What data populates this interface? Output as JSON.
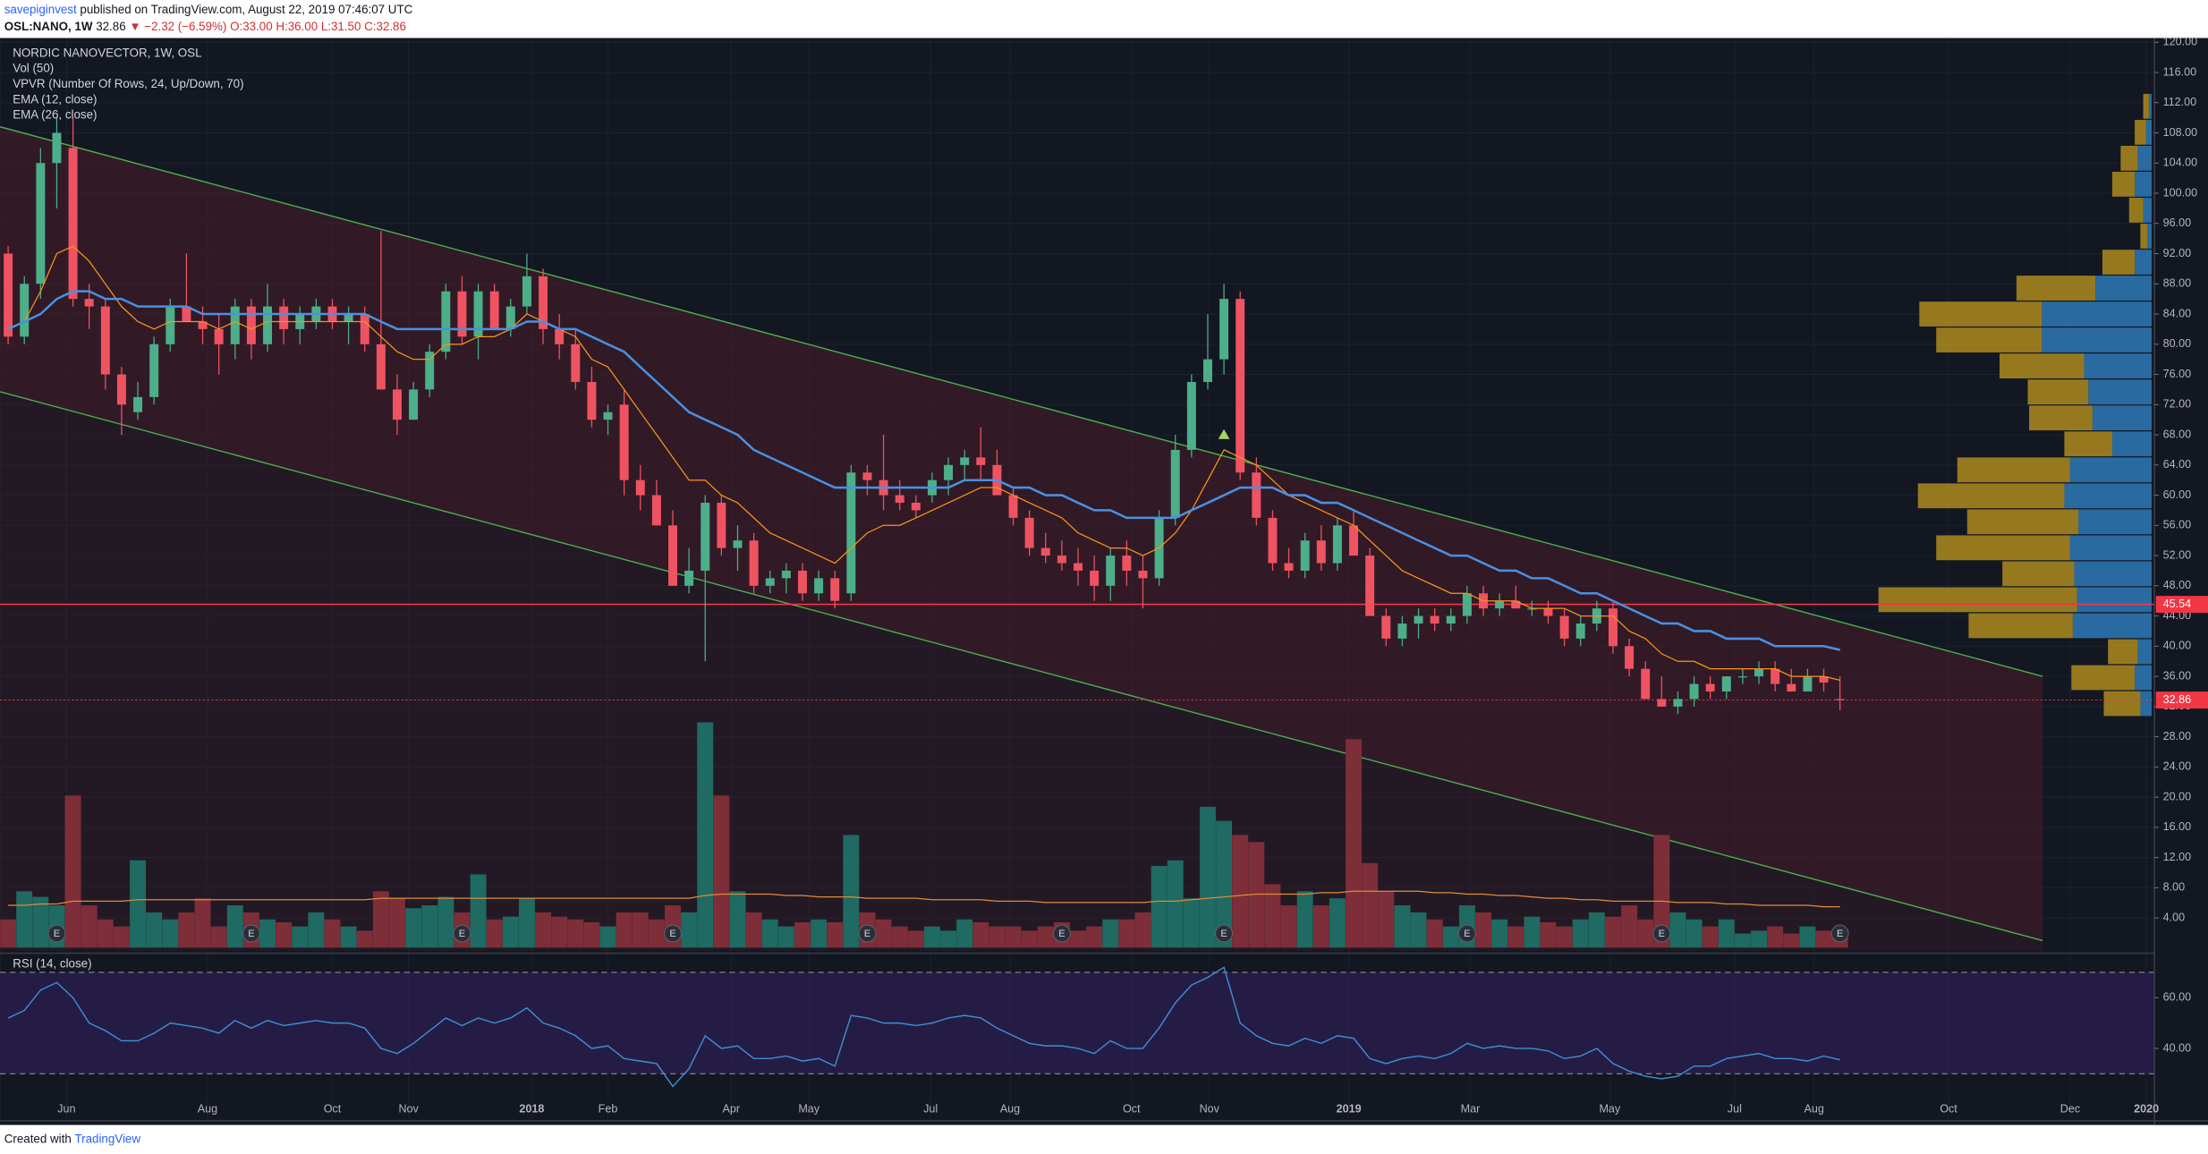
{
  "header": {
    "author": "savepiginvest",
    "published": "published on TradingView.com, August 22, 2019 07:46:07 UTC",
    "symbol": "OSL:NANO, 1W",
    "last": "32.86",
    "change": "▼ −2.32 (−6.59%)",
    "ohlc": "O:33.00 H:36.00 L:31.50 C:32.86"
  },
  "footer": {
    "created": "Created with",
    "brand": "TradingView"
  },
  "chart_data": {
    "type": "candlestick",
    "title": "NORDIC NANOVECTOR, 1W, OSL",
    "indicators": [
      "Vol (50)",
      "VPVR (Number Of Rows, 24, Up/Down, 70)",
      "EMA (12, close)",
      "EMA (26, close)"
    ],
    "up_color": "#4caf8a",
    "down_color": "#ef5361",
    "open": [
      92,
      81,
      88,
      104,
      106,
      86,
      85,
      76,
      71,
      73,
      80,
      85,
      83,
      82,
      80,
      85,
      80,
      85,
      82,
      83,
      85,
      83,
      84,
      80,
      74,
      70,
      74,
      79,
      87,
      81,
      87,
      82,
      85,
      89,
      82,
      80,
      75,
      70,
      72,
      62,
      60,
      56,
      48,
      50,
      59,
      53,
      54,
      48,
      49,
      50,
      47,
      49,
      47,
      63,
      62,
      60,
      59,
      60,
      62,
      64,
      65,
      64,
      60,
      57,
      53,
      52,
      51,
      50,
      48,
      52,
      50,
      49,
      57,
      66,
      75,
      78,
      86,
      63,
      57,
      51,
      50,
      54,
      51,
      56,
      52,
      44,
      41,
      43,
      44,
      43,
      44,
      47,
      45,
      46,
      45,
      45,
      44,
      41,
      43,
      45,
      40,
      37,
      33,
      32,
      33,
      35,
      34,
      36,
      36,
      37,
      35,
      34,
      36,
      33
    ],
    "high": [
      93,
      89,
      106,
      110,
      110,
      88,
      86,
      77,
      75,
      81,
      86,
      92,
      85,
      84,
      86,
      86,
      88,
      86,
      85,
      86,
      86,
      85,
      85,
      95,
      76,
      75,
      80,
      88,
      89,
      88,
      88,
      86,
      92,
      90,
      84,
      82,
      77,
      72,
      74,
      64,
      62,
      58,
      53,
      60,
      60,
      56,
      55,
      50,
      51,
      51,
      50,
      50,
      64,
      64,
      68,
      62,
      60,
      63,
      65,
      66,
      69,
      66,
      61,
      58,
      55,
      54,
      53,
      52,
      53,
      54,
      52,
      58,
      68,
      76,
      84,
      88,
      87,
      65,
      58,
      53,
      55,
      56,
      57,
      58,
      53,
      45,
      44,
      45,
      45,
      45,
      48,
      48,
      47,
      48,
      46,
      46,
      45,
      44,
      46,
      46,
      41,
      38,
      36,
      34,
      36,
      36,
      36,
      37,
      38,
      38,
      37,
      37,
      37,
      36
    ],
    "low": [
      80,
      80,
      86,
      98,
      85,
      82,
      74,
      68,
      70,
      72,
      79,
      83,
      80,
      76,
      78,
      78,
      79,
      80,
      80,
      82,
      82,
      80,
      79,
      74,
      68,
      70,
      73,
      78,
      80,
      78,
      82,
      81,
      84,
      80,
      78,
      74,
      69,
      68,
      60,
      58,
      56,
      48,
      47,
      38,
      52,
      50,
      47,
      47,
      47,
      46,
      46,
      45,
      46,
      60,
      58,
      58,
      57,
      59,
      60,
      62,
      62,
      60,
      56,
      52,
      51,
      50,
      48,
      46,
      46,
      48,
      45,
      48,
      56,
      65,
      74,
      76,
      62,
      56,
      50,
      49,
      49,
      50,
      50,
      52,
      44,
      40,
      40,
      41,
      42,
      42,
      43,
      44,
      44,
      45,
      44,
      43,
      40,
      40,
      42,
      39,
      36,
      33,
      32,
      31,
      32,
      33,
      33,
      35,
      35,
      34,
      34,
      34,
      34,
      31.5
    ],
    "close": [
      81,
      88,
      104,
      108,
      86,
      85,
      76,
      72,
      73,
      80,
      85,
      83,
      82,
      80,
      85,
      80,
      85,
      82,
      84,
      85,
      83,
      84,
      80,
      74,
      70,
      74,
      79,
      87,
      81,
      87,
      82,
      85,
      89,
      82,
      80,
      75,
      70,
      71,
      62,
      60,
      56,
      48,
      50,
      59,
      53,
      54,
      48,
      49,
      50,
      47,
      49,
      46,
      63,
      62,
      60,
      59,
      58,
      62,
      64,
      65,
      64,
      60,
      57,
      53,
      52,
      51,
      50,
      48,
      52,
      50,
      49,
      57,
      66,
      75,
      78,
      86,
      63,
      57,
      51,
      50,
      54,
      51,
      56,
      52,
      44,
      41,
      43,
      44,
      43,
      44,
      47,
      45,
      46,
      45,
      45,
      44,
      41,
      43,
      45,
      40,
      37,
      33,
      32,
      33,
      35,
      34,
      36,
      36,
      37,
      35,
      34,
      36,
      35.18,
      32.86
    ],
    "volume": [
      20,
      40,
      36,
      30,
      108,
      30,
      20,
      15,
      62,
      25,
      20,
      25,
      35,
      15,
      30,
      25,
      20,
      18,
      15,
      25,
      20,
      15,
      12,
      40,
      35,
      28,
      30,
      36,
      25,
      52,
      20,
      22,
      35,
      25,
      22,
      20,
      18,
      15,
      25,
      25,
      20,
      30,
      25,
      160,
      108,
      40,
      25,
      20,
      15,
      18,
      20,
      18,
      80,
      25,
      20,
      15,
      12,
      15,
      12,
      20,
      18,
      15,
      15,
      12,
      15,
      18,
      12,
      15,
      20,
      20,
      25,
      58,
      62,
      35,
      100,
      90,
      80,
      75,
      45,
      30,
      40,
      30,
      35,
      148,
      60,
      40,
      30,
      25,
      20,
      15,
      30,
      25,
      20,
      15,
      22,
      18,
      15,
      20,
      25,
      22,
      30,
      20,
      80,
      25,
      20,
      15,
      20,
      10,
      12,
      15,
      10,
      15,
      12,
      10
    ],
    "volume_ma": {
      "color": "#e08a3c",
      "values": [
        30,
        30,
        31,
        31,
        33,
        33,
        33,
        33,
        34,
        34,
        34,
        34,
        34,
        34,
        34,
        34,
        34,
        34,
        34,
        34,
        34,
        34,
        34,
        35,
        35,
        35,
        35,
        35,
        35,
        35,
        35,
        35,
        35,
        35,
        35,
        35,
        35,
        35,
        35,
        35,
        35,
        35,
        35,
        37,
        38,
        38,
        38,
        38,
        37,
        37,
        36,
        36,
        36,
        35,
        35,
        35,
        35,
        34,
        34,
        34,
        34,
        33,
        33,
        33,
        32,
        32,
        32,
        32,
        32,
        32,
        32,
        33,
        33,
        34,
        35,
        36,
        37,
        38,
        38,
        38,
        38,
        39,
        39,
        40,
        40,
        40,
        40,
        40,
        39,
        39,
        38,
        38,
        37,
        37,
        36,
        35,
        35,
        34,
        34,
        33,
        33,
        33,
        33,
        32,
        32,
        32,
        31,
        31,
        30,
        30,
        30,
        30,
        29,
        29
      ]
    },
    "vol_ylim": [
      0,
      160
    ],
    "series": [
      {
        "name": "EMA (12, close)",
        "color": "#f7931a",
        "values": [
          82,
          83,
          87,
          92,
          93,
          91,
          88,
          85,
          83,
          82,
          83,
          83,
          83,
          82,
          83,
          82,
          83,
          83,
          83,
          83,
          83,
          83,
          83,
          81,
          79,
          78,
          78,
          80,
          80,
          81,
          81,
          82,
          84,
          83,
          82,
          81,
          78,
          77,
          74,
          71,
          68,
          65,
          62,
          62,
          60,
          59,
          57,
          55,
          54,
          53,
          52,
          51,
          53,
          55,
          56,
          56,
          57,
          58,
          59,
          60,
          61,
          61,
          60,
          59,
          58,
          57,
          55,
          54,
          53,
          53,
          52,
          53,
          55,
          58,
          62,
          66,
          65,
          64,
          62,
          60,
          59,
          58,
          57,
          56,
          54,
          52,
          50,
          49,
          48,
          47,
          47,
          46,
          46,
          46,
          45,
          45,
          45,
          44,
          44,
          44,
          42,
          41,
          39,
          38,
          38,
          37,
          37,
          37,
          37,
          37,
          36,
          36,
          36,
          35.5
        ]
      },
      {
        "name": "EMA (26, close)",
        "color": "#4a90e2",
        "values": [
          82,
          83,
          84,
          86,
          87,
          87,
          86,
          86,
          85,
          85,
          85,
          85,
          84,
          84,
          84,
          84,
          84,
          84,
          84,
          84,
          84,
          84,
          84,
          83,
          82,
          82,
          82,
          82,
          82,
          82,
          82,
          82,
          83,
          83,
          82,
          82,
          81,
          80,
          79,
          77,
          75,
          73,
          71,
          70,
          69,
          68,
          66,
          65,
          64,
          63,
          62,
          61,
          61,
          61,
          61,
          61,
          61,
          61,
          61,
          62,
          62,
          62,
          61,
          61,
          60,
          60,
          59,
          58,
          58,
          57,
          57,
          57,
          57,
          58,
          59,
          60,
          61,
          61,
          61,
          60,
          60,
          59,
          59,
          58,
          57,
          56,
          55,
          54,
          53,
          52,
          52,
          51,
          50,
          50,
          49,
          49,
          48,
          47,
          47,
          46,
          45,
          44,
          43,
          43,
          42,
          42,
          41,
          41,
          41,
          40,
          40,
          40,
          40,
          39.5
        ]
      }
    ],
    "xlim": [
      -0.5,
      132.4
    ],
    "xticks": [
      {
        "value": 3.6,
        "label": "Jun"
      },
      {
        "value": 12.3,
        "label": "Aug"
      },
      {
        "value": 20,
        "label": "Oct"
      },
      {
        "value": 24.7,
        "label": "Nov"
      },
      {
        "value": 32.3,
        "label": "2018"
      },
      {
        "value": 37,
        "label": "Feb"
      },
      {
        "value": 44.6,
        "label": "Apr"
      },
      {
        "value": 49.4,
        "label": "May"
      },
      {
        "value": 56.9,
        "label": "Jul"
      },
      {
        "value": 61.8,
        "label": "Aug"
      },
      {
        "value": 69.3,
        "label": "Oct"
      },
      {
        "value": 74.1,
        "label": "Nov"
      },
      {
        "value": 82.7,
        "label": "2019"
      },
      {
        "value": 90.2,
        "label": "Mar"
      },
      {
        "value": 98.8,
        "label": "May"
      },
      {
        "value": 106.5,
        "label": "Jul"
      },
      {
        "value": 111.4,
        "label": "Aug"
      },
      {
        "value": 119.7,
        "label": "Oct"
      },
      {
        "value": 127.2,
        "label": "Dec"
      },
      {
        "value": 131.9,
        "label": "2020"
      }
    ],
    "ylim": [
      -0.3,
      120.56
    ],
    "yticks": [
      {
        "value": 4,
        "label": "4.00"
      },
      {
        "value": 8,
        "label": "8.00"
      },
      {
        "value": 12,
        "label": "12.00"
      },
      {
        "value": 16,
        "label": "16.00"
      },
      {
        "value": 20,
        "label": "20.00"
      },
      {
        "value": 24,
        "label": "24.00"
      },
      {
        "value": 28,
        "label": "28.00"
      },
      {
        "value": 32,
        "label": "32.00"
      },
      {
        "value": 36,
        "label": "36.00"
      },
      {
        "value": 40,
        "label": "40.00"
      },
      {
        "value": 44,
        "label": "44.00"
      },
      {
        "value": 48,
        "label": "48.00"
      },
      {
        "value": 52,
        "label": "52.00"
      },
      {
        "value": 56,
        "label": "56.00"
      },
      {
        "value": 60,
        "label": "60.00"
      },
      {
        "value": 64,
        "label": "64.00"
      },
      {
        "value": 68,
        "label": "68.00"
      },
      {
        "value": 72,
        "label": "72.00"
      },
      {
        "value": 76,
        "label": "76.00"
      },
      {
        "value": 80,
        "label": "80.00"
      },
      {
        "value": 84,
        "label": "84.00"
      },
      {
        "value": 88,
        "label": "88.00"
      },
      {
        "value": 92,
        "label": "92.00"
      },
      {
        "value": 96,
        "label": "96.00"
      },
      {
        "value": 100,
        "label": "100.00"
      },
      {
        "value": 104,
        "label": "104.00"
      },
      {
        "value": 108,
        "label": "108.00"
      },
      {
        "value": 112,
        "label": "112.00"
      },
      {
        "value": 116,
        "label": "116.00"
      },
      {
        "value": 120,
        "label": "120.00"
      }
    ],
    "grid": true,
    "hlines": [
      {
        "value": 45.54,
        "label": "45.54",
        "color": "#f23645",
        "style": "solid"
      },
      {
        "value": 32.86,
        "label": "32.86",
        "color": "#f23645",
        "style": "dotted"
      }
    ],
    "channel": {
      "color": "#4caf50",
      "upper": [
        [
          -0.5,
          108.8
        ],
        [
          125.5,
          36
        ]
      ],
      "lower": [
        [
          -0.5,
          73.7
        ],
        [
          125.5,
          1
        ]
      ]
    },
    "vpvr": {
      "bins": [
        30.6,
        34.04,
        37.48,
        40.92,
        44.36,
        47.8,
        51.24,
        54.68,
        58.12,
        61.56,
        65,
        68.44,
        71.88,
        75.32,
        78.76,
        82.2,
        85.64,
        89.08,
        92.52,
        95.96,
        99.4,
        102.84,
        106.28,
        109.72,
        113.16
      ],
      "up": [
        8,
        12,
        10,
        56,
        53,
        55,
        58,
        52,
        62,
        58,
        28,
        42,
        45,
        48,
        78,
        78,
        40,
        12,
        3,
        6,
        12,
        10,
        4,
        2
      ],
      "down": [
        26,
        45,
        21,
        74,
        141,
        51,
        95,
        79,
        104,
        80,
        34,
        45,
        43,
        60,
        75,
        87,
        56,
        23,
        5,
        10,
        16,
        12,
        8,
        4
      ],
      "up_color": "#2f7fc1",
      "down_color": "#b8921f"
    },
    "earnings": {
      "label": "E",
      "x": [
        3,
        15,
        28,
        41,
        53,
        65,
        75,
        90,
        102,
        113
      ]
    },
    "signal": {
      "x": 75,
      "y": 68,
      "color": "#a4d65e"
    },
    "rsi": {
      "title": "RSI (14, close)",
      "color": "#3d8fd6",
      "ylim": [
        12,
        77
      ],
      "yticks": [
        {
          "value": 40,
          "label": "40.00"
        },
        {
          "value": 60,
          "label": "60.00"
        }
      ],
      "bands": [
        30,
        70
      ],
      "values": [
        52,
        55,
        63,
        66,
        60,
        50,
        47,
        43,
        43,
        46,
        50,
        49,
        48,
        46,
        51,
        48,
        51,
        49,
        50,
        51,
        50,
        50,
        48,
        40,
        38,
        42,
        47,
        52,
        49,
        52,
        50,
        52,
        56,
        50,
        48,
        45,
        40,
        41,
        36,
        35,
        34,
        25,
        32,
        45,
        40,
        41,
        36,
        36,
        37,
        35,
        36,
        33,
        53,
        52,
        50,
        50,
        49,
        50,
        52,
        53,
        52,
        48,
        45,
        42,
        41,
        41,
        40,
        38,
        43,
        40,
        40,
        48,
        58,
        65,
        68,
        72,
        50,
        45,
        42,
        41,
        44,
        42,
        45,
        44,
        36,
        34,
        36,
        37,
        36,
        38,
        42,
        40,
        41,
        40,
        40,
        39,
        36,
        37,
        40,
        34,
        31,
        29,
        28,
        29,
        33,
        33,
        36,
        37,
        38,
        36,
        36,
        35,
        37,
        35.5
      ]
    }
  }
}
